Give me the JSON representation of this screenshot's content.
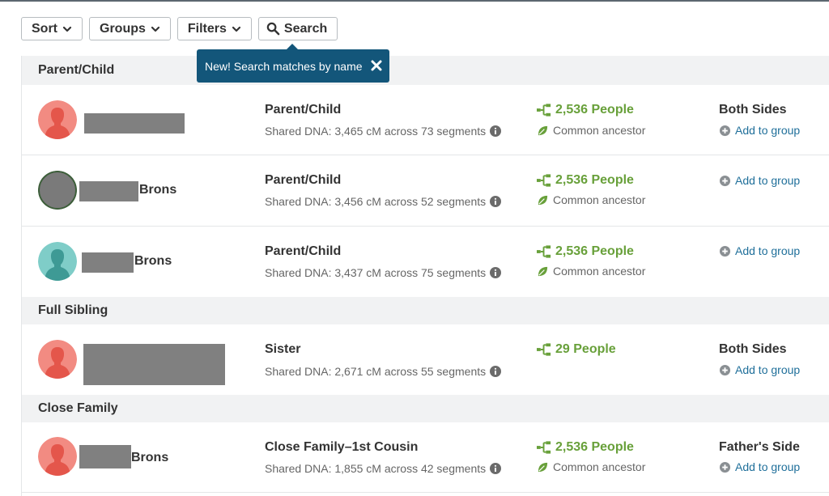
{
  "toolbar": {
    "sort_label": "Sort",
    "groups_label": "Groups",
    "filters_label": "Filters",
    "search_label": "Search"
  },
  "tooltip": {
    "text": "New! Search matches by name"
  },
  "icons": {
    "chevron": "chevron-down-icon",
    "search": "magnifier-icon",
    "close": "close-x-icon",
    "info": "info-circle-icon",
    "tree": "family-tree-icon",
    "leaf": "leaf-icon",
    "plus": "plus-circle-icon",
    "avatar": "person-silhouette-icon"
  },
  "colors": {
    "green": "#68a03a",
    "link": "#1f6f9a",
    "tooltip_bg": "#13567a",
    "avatar_female": "#f28b82",
    "avatar_male": "#7fcdc8",
    "redaction": "#808080"
  },
  "groups": [
    {
      "title": "Parent/Child",
      "matches": [
        {
          "name_suffix": "",
          "avatar": "female",
          "relationship": "Parent/Child",
          "shared_dna": "Shared DNA: 3,465 cM across 73 segments",
          "people": "2,536 People",
          "ancestor": "Common ancestor",
          "side": "Both Sides",
          "add_group": "Add to group"
        },
        {
          "name_suffix": "Brons",
          "avatar": "photo",
          "relationship": "Parent/Child",
          "shared_dna": "Shared DNA: 3,456 cM across 52 segments",
          "people": "2,536 People",
          "ancestor": "Common ancestor",
          "side": "",
          "add_group": "Add to group"
        },
        {
          "name_suffix": "Brons",
          "avatar": "male",
          "relationship": "Parent/Child",
          "shared_dna": "Shared DNA: 3,437 cM across 75 segments",
          "people": "2,536 People",
          "ancestor": "Common ancestor",
          "side": "",
          "add_group": "Add to group"
        }
      ]
    },
    {
      "title": "Full Sibling",
      "matches": [
        {
          "name_suffix": "",
          "avatar": "female",
          "relationship": "Sister",
          "shared_dna": "Shared DNA: 2,671 cM across 55 segments",
          "people": "29 People",
          "ancestor": "",
          "side": "Both Sides",
          "add_group": "Add to group"
        }
      ]
    },
    {
      "title": "Close Family",
      "matches": [
        {
          "name_suffix": "Brons",
          "avatar": "female",
          "relationship": "Close Family–1st Cousin",
          "shared_dna": "Shared DNA: 1,855 cM across 42 segments",
          "people": "2,536 People",
          "ancestor": "Common ancestor",
          "side": "Father's Side",
          "add_group": "Add to group"
        }
      ]
    }
  ]
}
